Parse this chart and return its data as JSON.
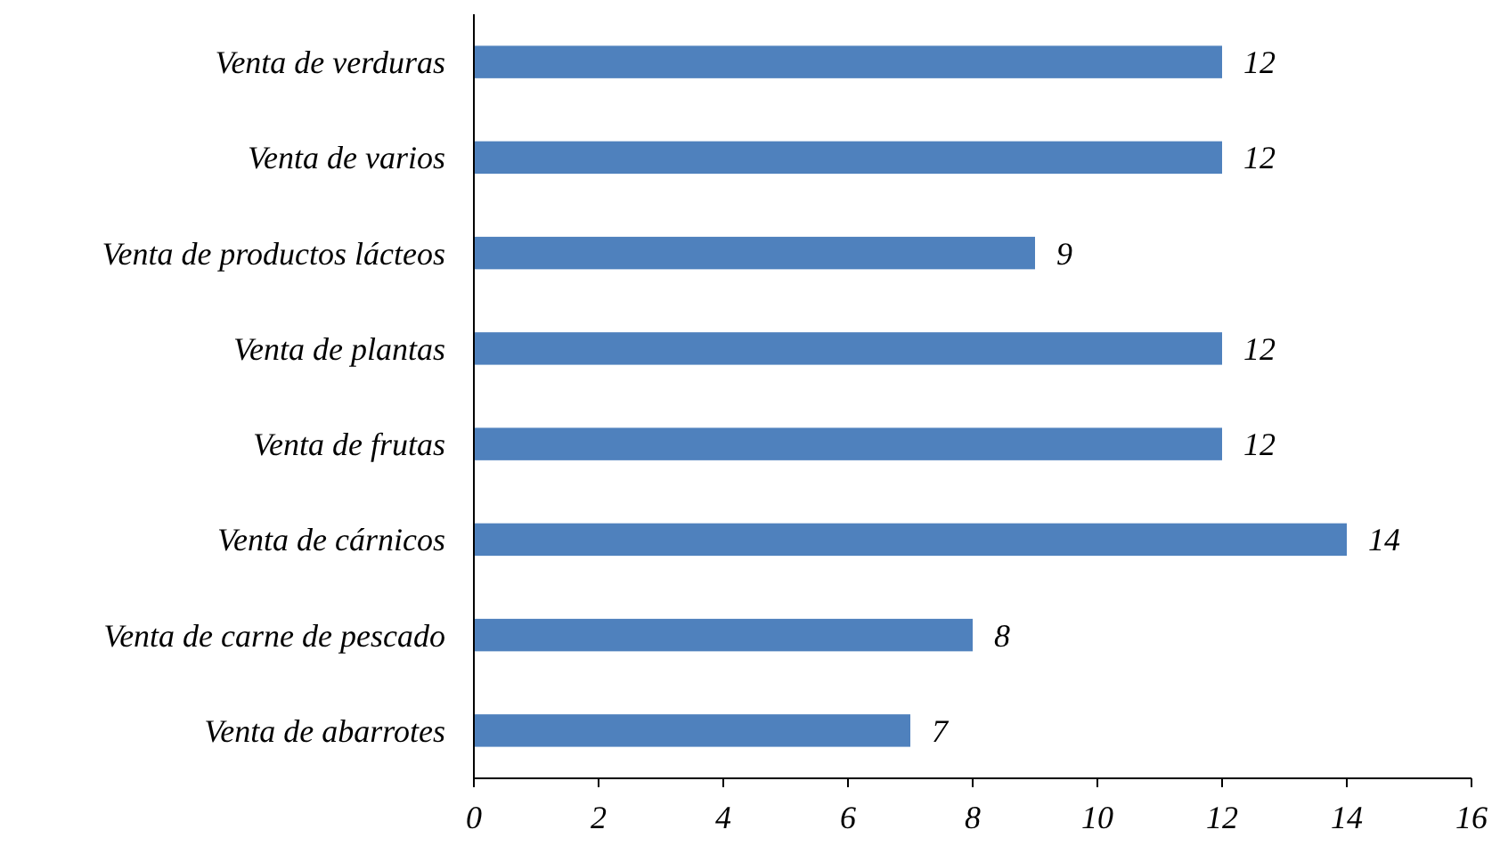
{
  "chart_data": {
    "type": "bar",
    "orientation": "horizontal",
    "categories": [
      "Venta de verduras",
      "Venta de varios",
      "Venta de productos lácteos",
      "Venta de plantas",
      "Venta de frutas",
      "Venta de cárnicos",
      "Venta de carne de pescado",
      "Venta de abarrotes"
    ],
    "values": [
      12,
      12,
      9,
      12,
      12,
      14,
      8,
      7
    ],
    "color": "#4f81bd",
    "xlim": [
      0,
      16
    ],
    "xticks": [
      0,
      2,
      4,
      6,
      8,
      10,
      12,
      14,
      16
    ],
    "grid": false,
    "data_labels": true
  }
}
